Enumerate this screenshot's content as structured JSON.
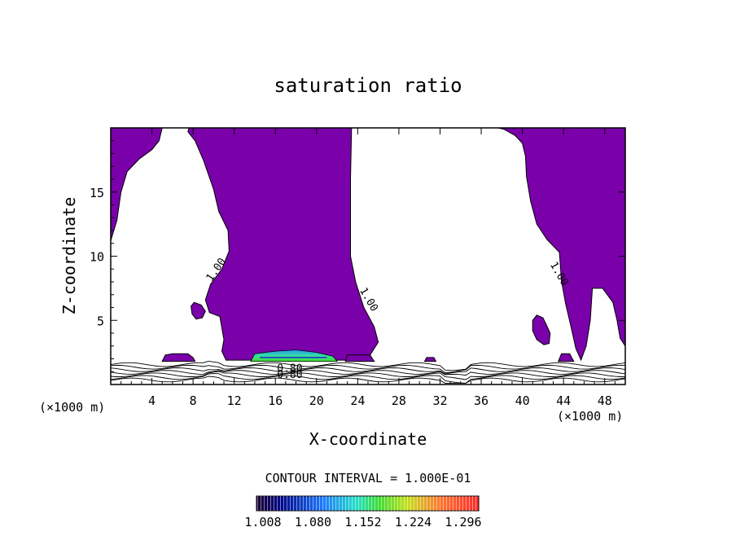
{
  "chart_data": {
    "type": "contour",
    "title": "saturation ratio",
    "xlabel": "X-coordinate",
    "ylabel": "Z-coordinate",
    "x_unit_left": "(×1000 m)",
    "x_unit_right": "(×1000 m)",
    "xlim": [
      0,
      50
    ],
    "ylim": [
      0,
      20
    ],
    "x_ticks": [
      4,
      8,
      12,
      16,
      20,
      24,
      28,
      32,
      36,
      40,
      44,
      48
    ],
    "y_ticks": [
      5,
      10,
      15
    ],
    "contour_interval_label": "CONTOUR INTERVAL = 1.000E-01",
    "colorbar_ticks": [
      "1.008",
      "1.080",
      "1.152",
      "1.224",
      "1.296"
    ],
    "colorbar_range": [
      1.0,
      1.3
    ],
    "fill_color": "#7a00aa",
    "contour_labels": [
      {
        "text": "1.00",
        "x": 10.5,
        "z": 8.8,
        "angle": -55
      },
      {
        "text": "1.00",
        "x": 24.8,
        "z": 6.5,
        "angle": 60
      },
      {
        "text": "1.00",
        "x": 43.3,
        "z": 8.5,
        "angle": 60
      },
      {
        "text": "0.80",
        "x": 17.4,
        "z": 1.0,
        "angle": 0
      },
      {
        "text": "0.80",
        "x": 17.4,
        "z": 0.5,
        "angle": 0
      }
    ],
    "regions": [
      {
        "name": "left-upper-moist",
        "points": [
          [
            0,
            20
          ],
          [
            5,
            20
          ],
          [
            4.7,
            19
          ],
          [
            4,
            18.3
          ],
          [
            2.8,
            17.6
          ],
          [
            1.6,
            16.6
          ],
          [
            1,
            15
          ],
          [
            0.6,
            12.8
          ],
          [
            0,
            11.2
          ]
        ]
      },
      {
        "name": "central-plume",
        "points": [
          [
            7.6,
            20
          ],
          [
            23.4,
            20
          ],
          [
            23.3,
            16
          ],
          [
            23.3,
            10
          ],
          [
            23.8,
            8
          ],
          [
            24.6,
            6
          ],
          [
            25.6,
            4.5
          ],
          [
            26,
            3.3
          ],
          [
            25.2,
            2.3
          ],
          [
            24,
            1.9
          ],
          [
            21,
            1.9
          ],
          [
            17,
            1.9
          ],
          [
            13,
            1.9
          ],
          [
            11.2,
            1.9
          ],
          [
            10.8,
            2.6
          ],
          [
            11,
            3.5
          ],
          [
            10.6,
            5.3
          ],
          [
            9.6,
            5.6
          ],
          [
            9.2,
            6.6
          ],
          [
            9.7,
            7.8
          ],
          [
            10.8,
            9
          ],
          [
            11.5,
            10.4
          ],
          [
            11.4,
            12
          ],
          [
            10.5,
            13.5
          ],
          [
            10,
            15.2
          ],
          [
            9,
            17.5
          ],
          [
            8.2,
            19
          ],
          [
            7.5,
            19.7
          ]
        ]
      },
      {
        "name": "right-plume",
        "points": [
          [
            37.6,
            20
          ],
          [
            50,
            20
          ],
          [
            50,
            3
          ],
          [
            49.5,
            3.6
          ],
          [
            49.2,
            5
          ],
          [
            48.8,
            6.4
          ],
          [
            47.8,
            7.5
          ],
          [
            46.8,
            7.5
          ],
          [
            46.6,
            5
          ],
          [
            46.2,
            3
          ],
          [
            45.7,
            1.9
          ],
          [
            45.2,
            2.8
          ],
          [
            44.7,
            4.6
          ],
          [
            44.2,
            6.3
          ],
          [
            43.8,
            8.1
          ],
          [
            43.6,
            10.3
          ],
          [
            42.4,
            11.3
          ],
          [
            41.4,
            12.5
          ],
          [
            40.8,
            14.3
          ],
          [
            40.4,
            16.2
          ],
          [
            40.3,
            17.8
          ],
          [
            40,
            18.8
          ],
          [
            39.3,
            19.4
          ],
          [
            38.2,
            19.9
          ]
        ]
      },
      {
        "name": "small-blob-a",
        "points": [
          [
            7.8,
            6.1
          ],
          [
            8.1,
            6.4
          ],
          [
            8.8,
            6.2
          ],
          [
            9.2,
            5.7
          ],
          [
            8.9,
            5.2
          ],
          [
            8.3,
            5.1
          ],
          [
            7.9,
            5.5
          ]
        ]
      },
      {
        "name": "small-blob-b",
        "points": [
          [
            41,
            5
          ],
          [
            41.4,
            5.4
          ],
          [
            42,
            5.2
          ],
          [
            42.3,
            4.7
          ],
          [
            42.7,
            4.0
          ],
          [
            42.6,
            3.2
          ],
          [
            42.1,
            3.1
          ],
          [
            41.4,
            3.5
          ],
          [
            41,
            4.2
          ]
        ]
      },
      {
        "name": "surface-left",
        "points": [
          [
            5,
            1.8
          ],
          [
            5.3,
            2.3
          ],
          [
            6,
            2.4
          ],
          [
            7.5,
            2.4
          ],
          [
            8,
            2.1
          ],
          [
            8.2,
            1.8
          ]
        ]
      },
      {
        "name": "surface-mid-a",
        "points": [
          [
            22.8,
            1.8
          ],
          [
            23,
            2.3
          ],
          [
            25.2,
            2.3
          ],
          [
            25.6,
            1.8
          ]
        ]
      },
      {
        "name": "surface-small-a",
        "points": [
          [
            30.5,
            1.8
          ],
          [
            30.7,
            2.1
          ],
          [
            31.4,
            2.1
          ],
          [
            31.6,
            1.8
          ]
        ]
      },
      {
        "name": "surface-small-b",
        "points": [
          [
            43.5,
            1.8
          ],
          [
            43.8,
            2.4
          ],
          [
            44.6,
            2.4
          ],
          [
            45,
            1.8
          ]
        ]
      }
    ]
  }
}
